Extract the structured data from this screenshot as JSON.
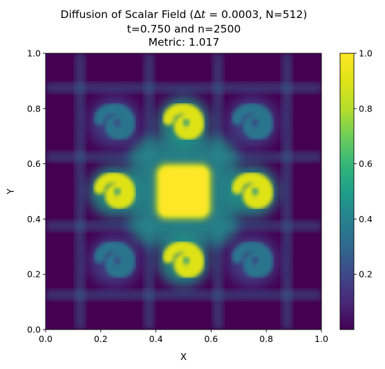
{
  "chart_data": {
    "type": "heatmap",
    "title": {
      "line1_prefix": "Diffusion of Scalar Field (Δ",
      "line1_var": "t",
      "line1_suffix": " = 0.0003, N=512)",
      "line2": "t=0.750 and n=2500",
      "line3": "Metric: 1.017"
    },
    "xlabel": "X",
    "ylabel": "Y",
    "xlim": [
      0.0,
      1.0
    ],
    "ylim": [
      0.0,
      1.0
    ],
    "x_ticks": [
      "0.0",
      "0.2",
      "0.4",
      "0.6",
      "0.8",
      "1.0"
    ],
    "y_ticks": [
      "0.0",
      "0.2",
      "0.4",
      "0.6",
      "0.8",
      "1.0"
    ],
    "colormap": "viridis",
    "colorbar": {
      "vmin": 0.0,
      "vmax": 1.0,
      "ticks": [
        "0.2",
        "0.4",
        "0.6",
        "0.8",
        "1.0"
      ]
    },
    "grid": false,
    "features": {
      "central_square": {
        "x": [
          0.4,
          0.6
        ],
        "y": [
          0.4,
          0.6
        ],
        "value": 1.0
      },
      "swirls": [
        {
          "x": 0.5,
          "y": 0.75,
          "value": 0.9
        },
        {
          "x": 0.25,
          "y": 0.5,
          "value": 0.9
        },
        {
          "x": 0.75,
          "y": 0.5,
          "value": 0.9
        },
        {
          "x": 0.5,
          "y": 0.25,
          "value": 0.9
        },
        {
          "x": 0.25,
          "y": 0.75,
          "value": 0.35
        },
        {
          "x": 0.75,
          "y": 0.75,
          "value": 0.35
        },
        {
          "x": 0.25,
          "y": 0.25,
          "value": 0.35
        },
        {
          "x": 0.75,
          "y": 0.25,
          "value": 0.35
        }
      ],
      "filaments_x": [
        0.125,
        0.375,
        0.625,
        0.875
      ],
      "filaments_y": [
        0.125,
        0.375,
        0.625,
        0.875
      ],
      "background_value": 0.0
    }
  }
}
